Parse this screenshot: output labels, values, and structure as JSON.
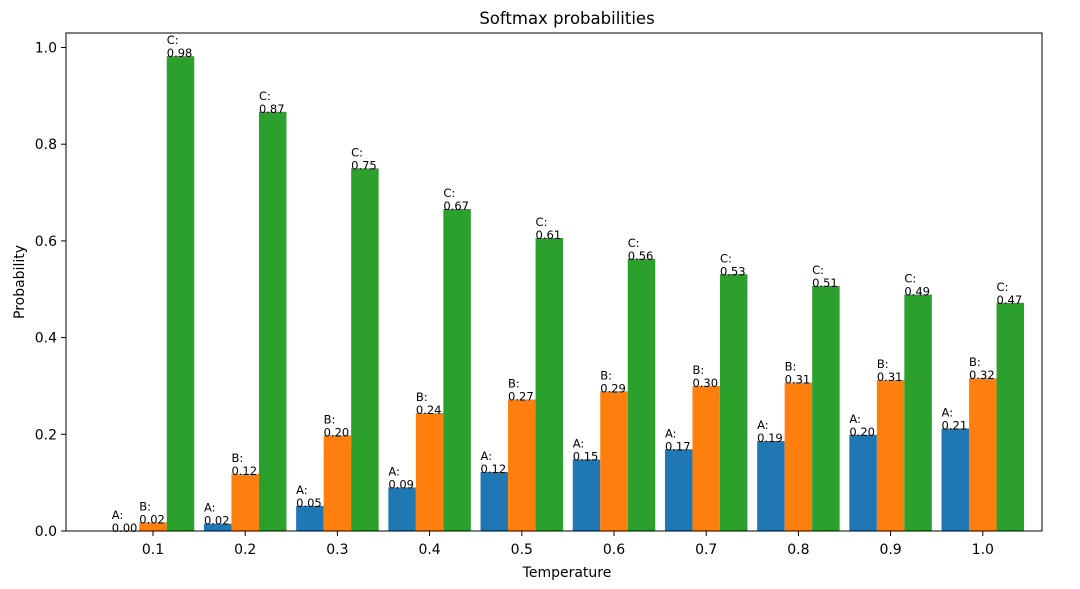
{
  "chart_data": {
    "type": "bar",
    "title": "Softmax probabilities",
    "xlabel": "Temperature",
    "ylabel": "Probability",
    "categories": [
      "0.1",
      "0.2",
      "0.3",
      "0.4",
      "0.5",
      "0.6",
      "0.7",
      "0.8",
      "0.9",
      "1.0"
    ],
    "ylim": [
      0,
      1.03
    ],
    "yticks": [
      "0.0",
      "0.2",
      "0.4",
      "0.6",
      "0.8",
      "1.0"
    ],
    "grid": false,
    "series": [
      {
        "name": "A",
        "color": "#1f77b4",
        "values": [
          0.0001,
          0.015,
          0.052,
          0.09,
          0.122,
          0.148,
          0.169,
          0.186,
          0.199,
          0.212
        ],
        "labels": [
          "A:",
          "A:",
          "A:",
          "A:",
          "A:",
          "A:",
          "A:",
          "A:",
          "A:",
          "A:"
        ],
        "label_values": [
          "0.00",
          "0.02",
          "0.05",
          "0.09",
          "0.12",
          "0.15",
          "0.17",
          "0.19",
          "0.20",
          "0.21"
        ]
      },
      {
        "name": "B",
        "color": "#ff7f0e",
        "values": [
          0.018,
          0.118,
          0.198,
          0.244,
          0.272,
          0.289,
          0.3,
          0.307,
          0.312,
          0.316
        ],
        "labels": [
          "B:",
          "B:",
          "B:",
          "B:",
          "B:",
          "B:",
          "B:",
          "B:",
          "B:",
          "B:"
        ],
        "label_values": [
          "0.02",
          "0.12",
          "0.20",
          "0.24",
          "0.27",
          "0.29",
          "0.30",
          "0.31",
          "0.31",
          "0.32"
        ]
      },
      {
        "name": "C",
        "color": "#2ca02c",
        "values": [
          0.982,
          0.867,
          0.75,
          0.666,
          0.606,
          0.563,
          0.531,
          0.507,
          0.489,
          0.472
        ],
        "labels": [
          "C:",
          "C:",
          "C:",
          "C:",
          "C:",
          "C:",
          "C:",
          "C:",
          "C:",
          "C:"
        ],
        "label_values": [
          "0.98",
          "0.87",
          "0.75",
          "0.67",
          "0.61",
          "0.56",
          "0.53",
          "0.51",
          "0.49",
          "0.47"
        ]
      }
    ]
  }
}
